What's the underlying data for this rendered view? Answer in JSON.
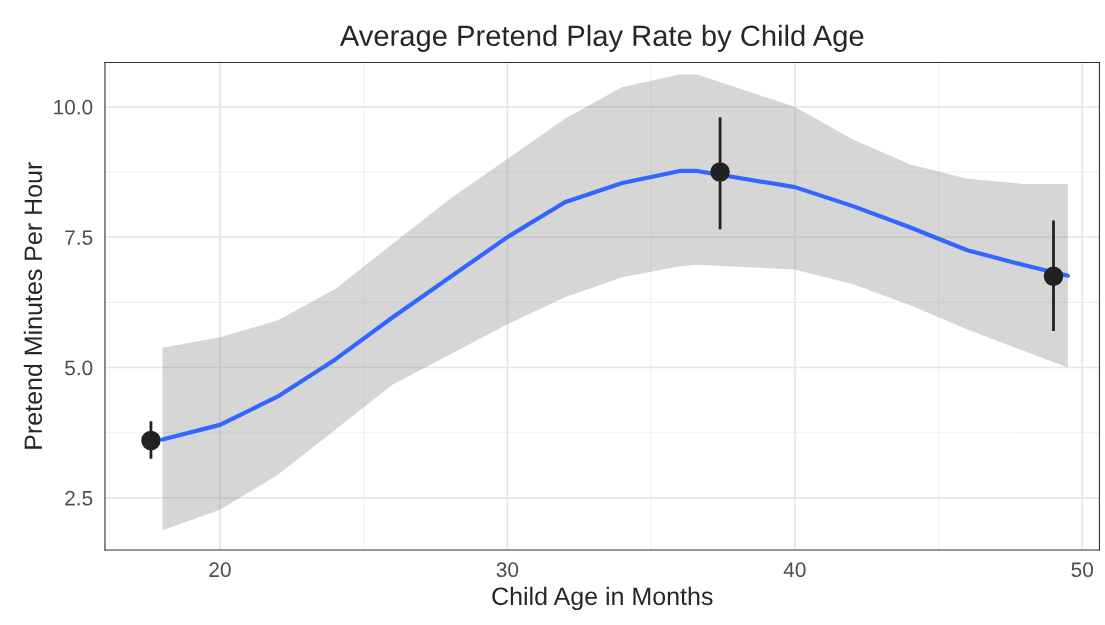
{
  "chart_data": {
    "type": "line",
    "title": "Average Pretend Play Rate by Child Age",
    "xlabel": "Child Age in Months",
    "ylabel": "Pretend Minutes Per Hour",
    "xlim": [
      16.0,
      50.6
    ],
    "xticks": [
      20,
      30,
      40,
      50
    ],
    "ylim": [
      1.5,
      10.85
    ],
    "yticks": [
      {
        "value": 2.5,
        "label": "2.5"
      },
      {
        "value": 5.0,
        "label": "5.0"
      },
      {
        "value": 7.5,
        "label": "7.5"
      },
      {
        "value": 10.0,
        "label": "10.0"
      }
    ],
    "grid": true,
    "legend": false,
    "series": [
      {
        "color": "#3366ff",
        "x": [
          18,
          20,
          22,
          24,
          26,
          28,
          30,
          32,
          34,
          36,
          36.6,
          40,
          42,
          44,
          46,
          48,
          49.5
        ],
        "values": [
          3.62,
          3.9,
          4.44,
          5.15,
          5.96,
          6.73,
          7.5,
          8.17,
          8.54,
          8.77,
          8.77,
          8.46,
          8.1,
          7.69,
          7.25,
          6.96,
          6.76
        ],
        "lower": [
          1.88,
          2.27,
          2.94,
          3.8,
          4.67,
          5.25,
          5.83,
          6.35,
          6.73,
          6.94,
          6.97,
          6.88,
          6.6,
          6.2,
          5.73,
          5.31,
          5.0
        ],
        "upper": [
          5.38,
          5.58,
          5.9,
          6.5,
          7.37,
          8.23,
          9.0,
          9.77,
          10.38,
          10.62,
          10.62,
          10.0,
          9.38,
          8.9,
          8.62,
          8.52,
          8.52
        ]
      },
      {
        "type": "scatter",
        "color": "#222222",
        "marker": "circle",
        "x": [
          17.6,
          37.4,
          49.0
        ],
        "values": [
          3.6,
          8.75,
          6.75
        ],
        "errors": [
          [
            3.25,
            3.97
          ],
          [
            7.65,
            9.8
          ],
          [
            5.7,
            7.82
          ]
        ]
      }
    ]
  }
}
